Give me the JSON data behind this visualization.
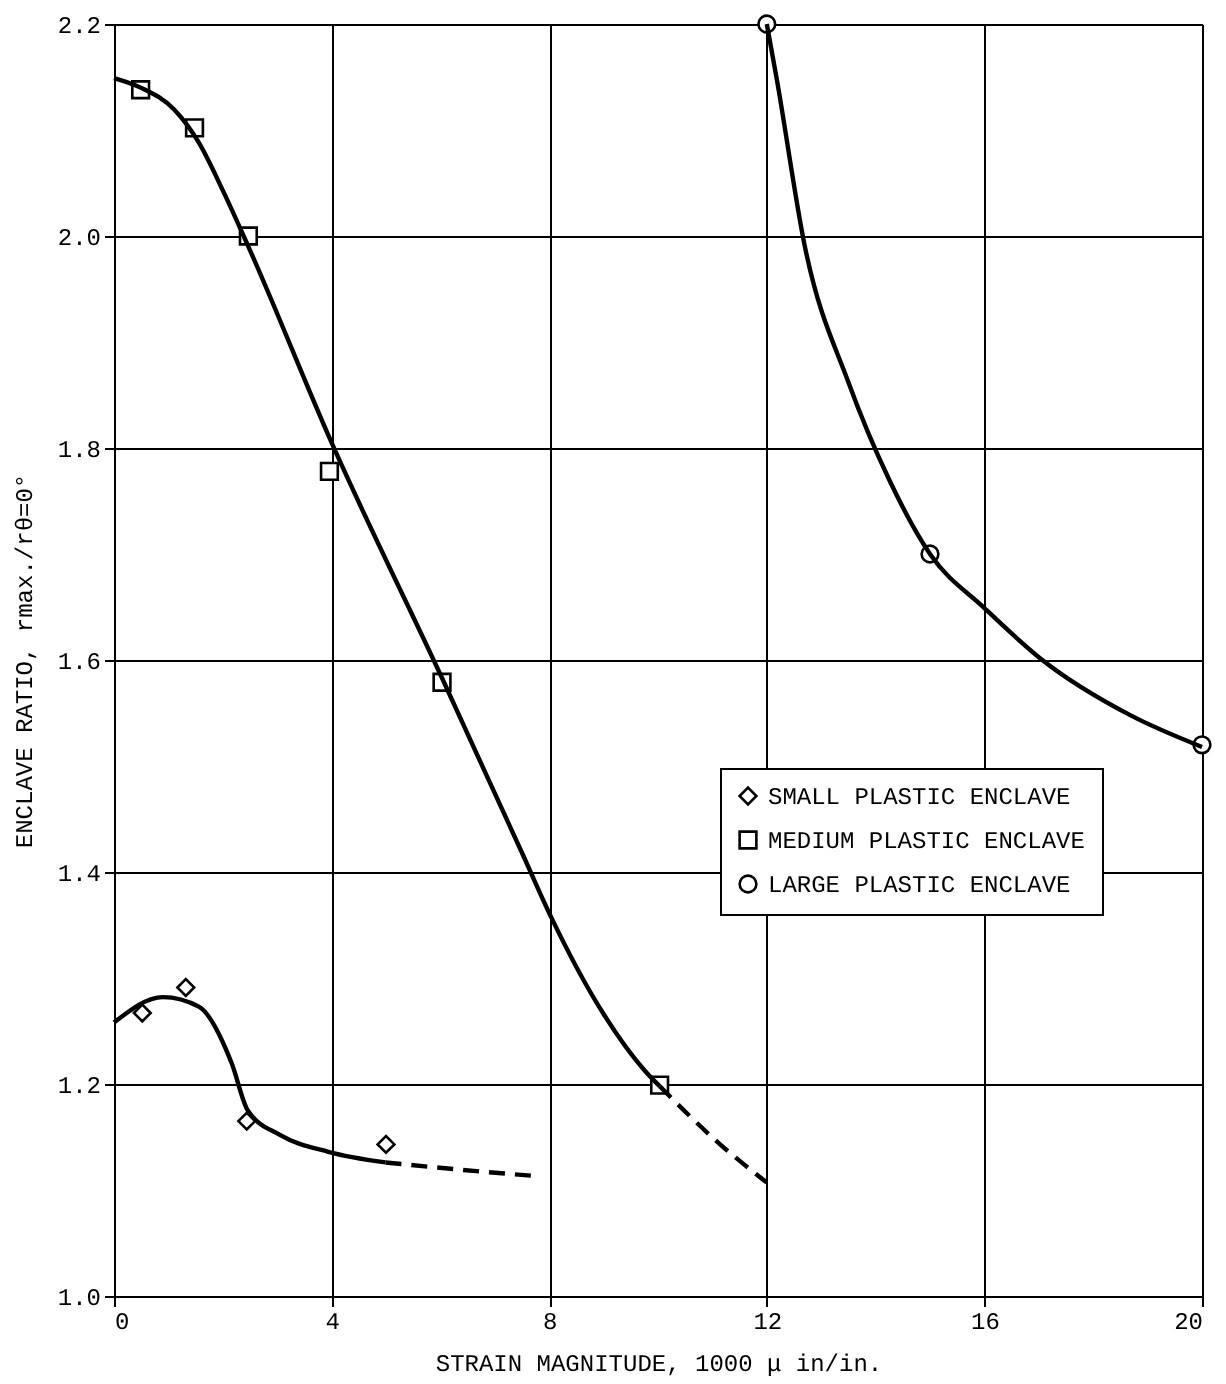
{
  "chart_data": {
    "type": "scatter",
    "xlabel": "STRAIN MAGNITUDE, 1000 μ in/in.",
    "ylabel": "ENCLAVE RATIO, rmax./rθ=0°",
    "xlim": [
      0,
      20
    ],
    "xticks": [
      0,
      4,
      8,
      12,
      16,
      20
    ],
    "ylim": [
      1.0,
      2.2
    ],
    "yticks": [
      {
        "value": 1,
        "label": "1.0"
      },
      1.2,
      1.4,
      1.6,
      1.8,
      {
        "value": 2,
        "label": "2.0"
      },
      2.2
    ],
    "grid": true,
    "legend": "right",
    "series": [
      {
        "name": "SMALL PLASTIC ENCLAVE",
        "type": "scatter",
        "marker": "diamond",
        "color": "#000000",
        "x": [
          0.52,
          1.32,
          2.44,
          5.0
        ],
        "values": [
          1.267,
          1.291,
          1.165,
          1.143
        ]
      },
      {
        "name": "MEDIUM PLASTIC ENCLAVE",
        "type": "scatter",
        "marker": "square",
        "color": "#000000",
        "x": [
          0.49,
          1.48,
          2.47,
          3.96,
          6.03,
          10.03
        ],
        "values": [
          2.138,
          2.102,
          2.0,
          1.778,
          1.579,
          1.199
        ]
      },
      {
        "name": "LARGE PLASTIC ENCLAVE",
        "type": "scatter",
        "marker": "circle",
        "color": "#000000",
        "x": [
          12.0,
          15.0,
          20.0
        ],
        "values": [
          2.2,
          1.7,
          1.52
        ]
      },
      {
        "type": "line",
        "line_style": "solid",
        "color": "#000000",
        "x": [
          0,
          0.9,
          1.56,
          2.16,
          2.46,
          3.05,
          3.94,
          4.99
        ],
        "values": [
          1.258,
          1.282,
          1.273,
          1.22,
          1.175,
          1.152,
          1.136,
          1.126
        ]
      },
      {
        "type": "line",
        "line_style": "dashed",
        "color": "#000000",
        "x": [
          4.99,
          6.4,
          7.8
        ],
        "values": [
          1.126,
          1.119,
          1.113
        ]
      },
      {
        "type": "line",
        "line_style": "solid",
        "color": "#000000",
        "x": [
          0,
          0.49,
          1.11,
          1.56,
          2.0,
          2.47,
          4.0,
          6.03,
          7.51,
          8.04,
          9.0,
          9.75,
          10.03
        ],
        "values": [
          2.149,
          2.14,
          2.119,
          2.088,
          2.043,
          1.99,
          1.805,
          1.583,
          1.417,
          1.357,
          1.266,
          1.213,
          1.198
        ]
      },
      {
        "type": "line",
        "line_style": "dashed",
        "color": "#000000",
        "x": [
          10.03,
          11.1,
          12.0
        ],
        "values": [
          1.198,
          1.145,
          1.107
        ]
      },
      {
        "type": "line",
        "line_style": "solid",
        "color": "#000000",
        "x": [
          12.0,
          12.18,
          12.7,
          13.5,
          14.25,
          15.0,
          16.0,
          17.04,
          18.68,
          20.0
        ],
        "values": [
          2.2,
          2.149,
          1.99,
          1.862,
          1.77,
          1.7,
          1.649,
          1.601,
          1.548,
          1.518
        ]
      }
    ]
  }
}
